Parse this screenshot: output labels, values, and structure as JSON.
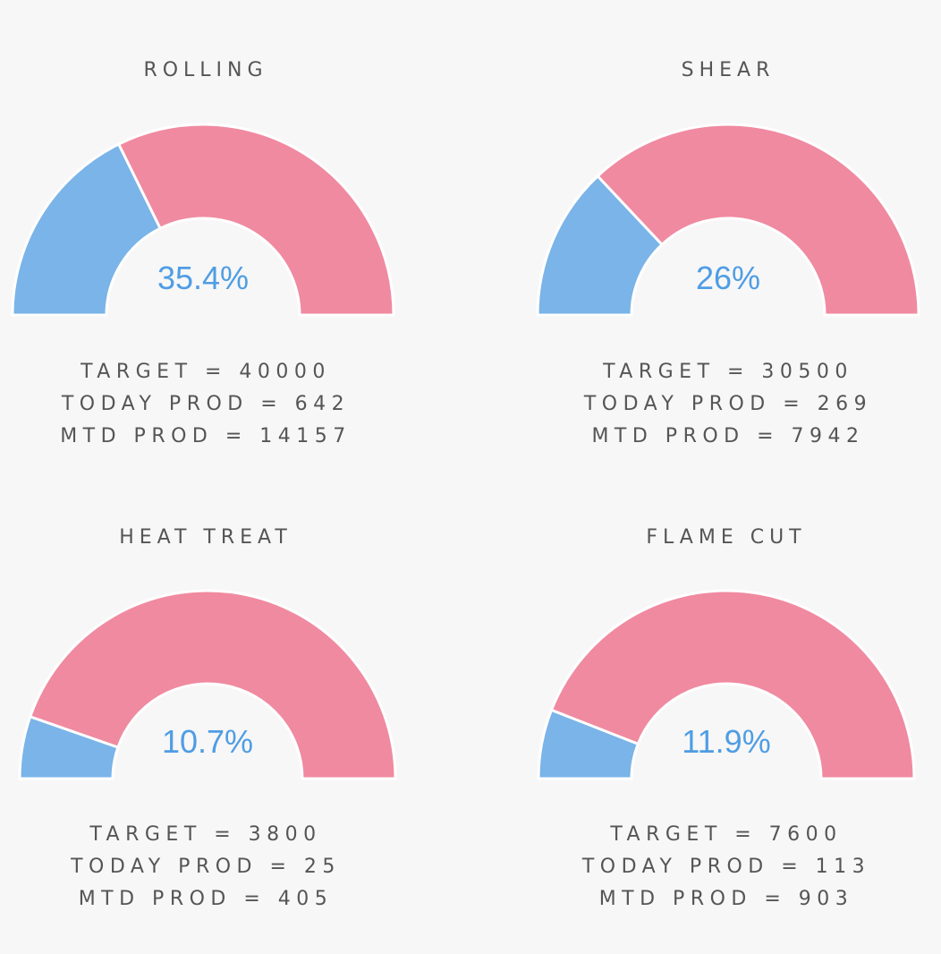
{
  "colors": {
    "filled": "#7ab4e8",
    "remaining": "#f08aa0",
    "percent_text": "#4f9de4",
    "background": "#f7f7f7"
  },
  "chart_data": [
    {
      "type": "pie",
      "title": "ROLLING",
      "percent_label": "35.4%",
      "value_percent": 35.4,
      "slices": [
        35.4,
        64.6
      ],
      "stats": {
        "target": "TARGET = 40000",
        "today": "TODAY PROD = 642",
        "mtd": "MTD PROD = 14157"
      }
    },
    {
      "type": "pie",
      "title": "SHEAR",
      "percent_label": "26%",
      "value_percent": 26,
      "slices": [
        26,
        74
      ],
      "stats": {
        "target": "TARGET = 30500",
        "today": "TODAY PROD = 269",
        "mtd": "MTD PROD = 7942"
      }
    },
    {
      "type": "pie",
      "title": "HEAT TREAT",
      "percent_label": "10.7%",
      "value_percent": 10.7,
      "slices": [
        10.7,
        89.3
      ],
      "stats": {
        "target": "TARGET = 3800",
        "today": "TODAY PROD = 25",
        "mtd": "MTD PROD = 405"
      }
    },
    {
      "type": "pie",
      "title": "FLAME CUT",
      "percent_label": "11.9%",
      "value_percent": 11.9,
      "slices": [
        11.9,
        88.1
      ],
      "stats": {
        "target": "TARGET = 7600",
        "today": "TODAY PROD = 113",
        "mtd": "MTD PROD = 903"
      }
    }
  ]
}
